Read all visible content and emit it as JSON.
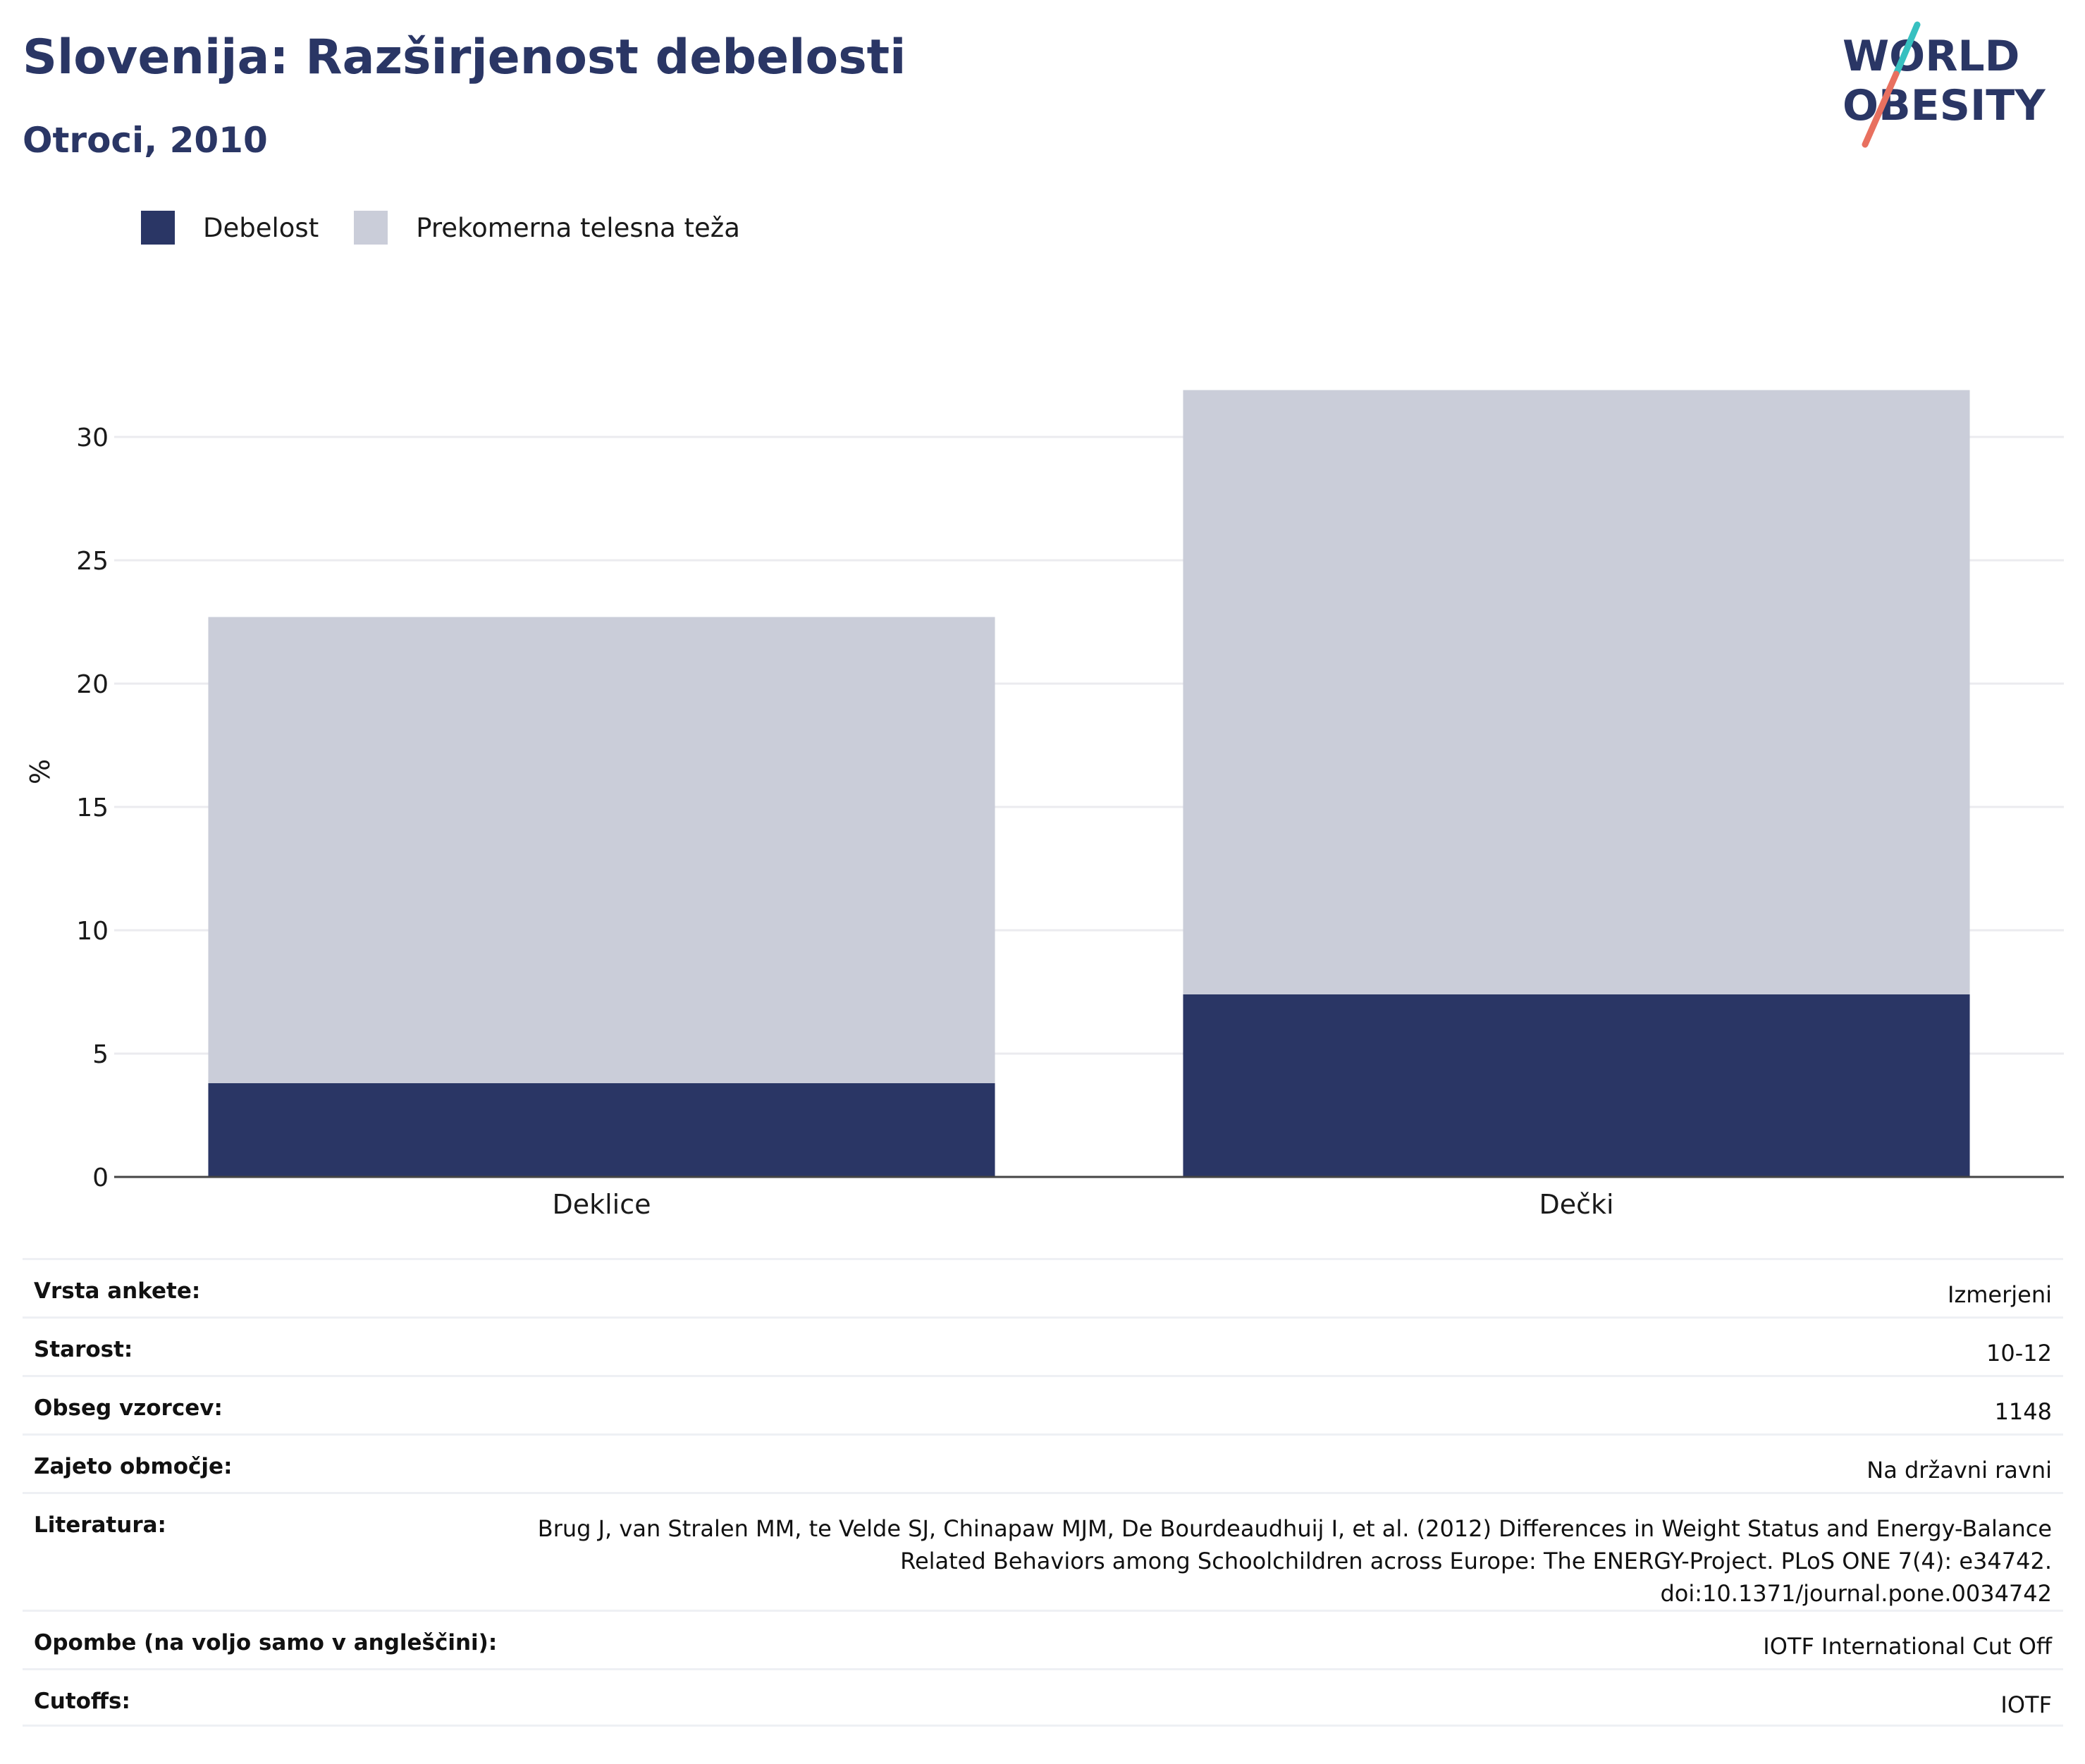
{
  "header": {
    "title": "Slovenija: Razširjenost debelosti",
    "subtitle": "Otroci, 2010"
  },
  "logo": {
    "line1": "WORLD",
    "line2": "OBESITY",
    "colors": {
      "text": "#2a3665",
      "accent_teal": "#37c0c0",
      "accent_coral": "#e8705f"
    }
  },
  "legend": {
    "items": [
      {
        "label": "Debelost",
        "color": "#2a3665"
      },
      {
        "label": "Prekomerna telesna teža",
        "color": "#cacdd9"
      }
    ]
  },
  "chart_data": {
    "type": "bar",
    "stacked": true,
    "categories": [
      "Deklice",
      "Dečki"
    ],
    "series": [
      {
        "name": "Debelost",
        "values": [
          3.8,
          7.4
        ],
        "color": "#2a3665"
      },
      {
        "name": "Prekomerna telesna teža",
        "values": [
          18.9,
          24.5
        ],
        "color": "#cacdd9"
      }
    ],
    "ylabel": "%",
    "ylim": [
      0,
      32
    ],
    "yticks": [
      0,
      5,
      10,
      15,
      20,
      25,
      30
    ],
    "grid": true,
    "legend_position": "top-left"
  },
  "meta": {
    "rows": [
      {
        "key": "Vrsta ankete:",
        "value": [
          "Izmerjeni"
        ]
      },
      {
        "key": "Starost:",
        "value": [
          "10-12"
        ]
      },
      {
        "key": "Obseg vzorcev:",
        "value": [
          "1148"
        ]
      },
      {
        "key": "Zajeto območje:",
        "value": [
          "Na državni ravni"
        ]
      },
      {
        "key": "Literatura:",
        "value": [
          "Brug J, van Stralen MM, te Velde SJ, Chinapaw MJM, De Bourdeaudhuij I, et al. (2012) Differences in Weight Status and Energy-Balance",
          "Related Behaviors among Schoolchildren across Europe: The ENERGY-Project. PLoS ONE 7(4): e34742.",
          "doi:10.1371/journal.pone.0034742"
        ]
      },
      {
        "key": "Opombe (na voljo samo v angleščini):",
        "value": [
          "IOTF International Cut Off"
        ]
      },
      {
        "key": "Cutoffs:",
        "value": [
          "IOTF"
        ]
      }
    ]
  }
}
